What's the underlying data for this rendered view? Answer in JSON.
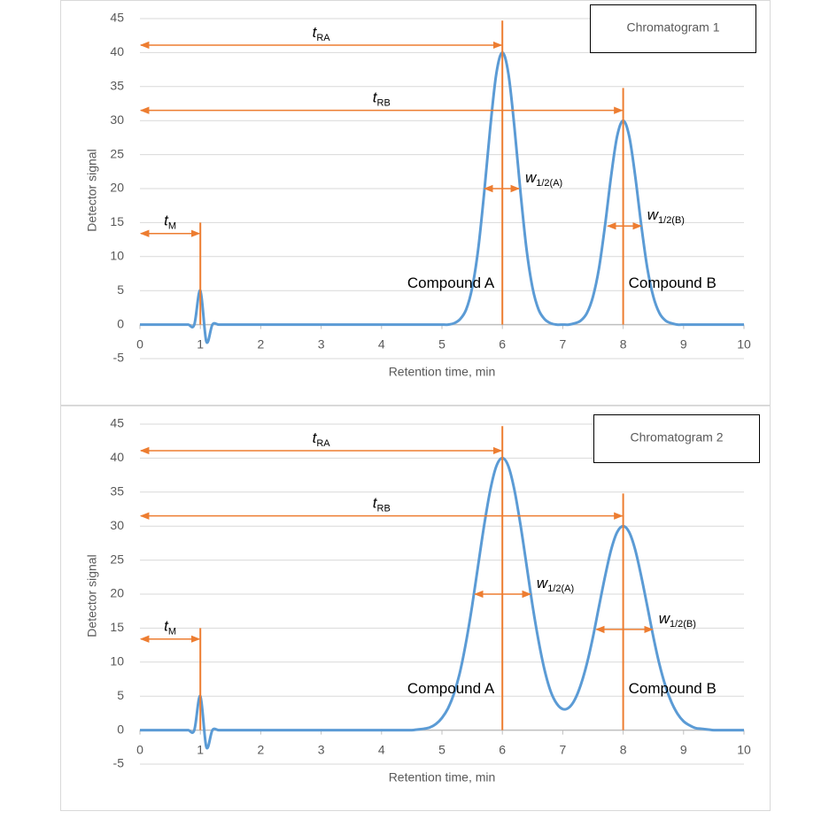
{
  "chart_data": [
    {
      "type": "line",
      "title": "Chromatogram 1",
      "xlabel": "Retention time, min",
      "ylabel": "Detector signal",
      "color": "#5b9bd5",
      "marker_color": "#ed7d31",
      "grid": true,
      "xlim": [
        0,
        10
      ],
      "ylim": [
        -5,
        45
      ],
      "xticks": [
        0,
        1,
        2,
        3,
        4,
        5,
        6,
        7,
        8,
        9,
        10
      ],
      "yticks": [
        -5,
        0,
        5,
        10,
        15,
        20,
        25,
        30,
        35,
        40,
        45
      ],
      "x": [
        0,
        0.1,
        0.2,
        0.3,
        0.4,
        0.5,
        0.6,
        0.7,
        0.8,
        0.9,
        1,
        1.1,
        1.2,
        1.3,
        1.4,
        1.5,
        1.6,
        1.7,
        1.8,
        1.9,
        2,
        2.1,
        2.2,
        2.3,
        2.4,
        2.5,
        2.6,
        2.7,
        2.8,
        2.9,
        3,
        3.1,
        3.2,
        3.3,
        3.4,
        3.5,
        3.6,
        3.7,
        3.8,
        3.9,
        4,
        4.1,
        4.2,
        4.3,
        4.4,
        4.5,
        4.6,
        4.7,
        4.8,
        4.9,
        5,
        5.1,
        5.2,
        5.3,
        5.4,
        5.5,
        5.6,
        5.7,
        5.8,
        5.9,
        6,
        6.1,
        6.2,
        6.3,
        6.4,
        6.5,
        6.6,
        6.7,
        6.8,
        6.9,
        7,
        7.1,
        7.2,
        7.3,
        7.4,
        7.5,
        7.6,
        7.7,
        7.8,
        7.9,
        8,
        8.1,
        8.2,
        8.3,
        8.4,
        8.5,
        8.6,
        8.7,
        8.8,
        8.9,
        9,
        9.1,
        9.2,
        9.3,
        9.4,
        9.5,
        9.6,
        9.7,
        9.8,
        9.9,
        10
      ],
      "values": [
        0,
        0,
        0,
        0,
        0,
        0,
        0,
        0,
        0,
        0,
        5,
        -2.5,
        0,
        0,
        0,
        0,
        0,
        0,
        0,
        0,
        0,
        0,
        0,
        0,
        0,
        0,
        0,
        0,
        0,
        0,
        0,
        0,
        0,
        0,
        0,
        0,
        0,
        0,
        0,
        0,
        0,
        0,
        0,
        0,
        0,
        0,
        0,
        0,
        0,
        0,
        0,
        0,
        0.2,
        0.8,
        2.2,
        5.4,
        11.1,
        19.5,
        29.0,
        36.9,
        40,
        36.9,
        29.0,
        19.5,
        11.1,
        5.4,
        2.2,
        0.8,
        0.2,
        0,
        0,
        0,
        0.2,
        0.6,
        1.7,
        4.1,
        8.3,
        14.6,
        21.8,
        27.7,
        30,
        27.7,
        21.8,
        14.6,
        8.3,
        4.1,
        1.7,
        0.6,
        0.2,
        0,
        0,
        0,
        0,
        0,
        0,
        0,
        0,
        0,
        0,
        0,
        0
      ],
      "peaks": [
        {
          "x": 1,
          "top": 15
        },
        {
          "x": 6,
          "top": 44.7,
          "label": "Compound A"
        },
        {
          "x": 8,
          "top": 34.8,
          "label": "Compound B"
        }
      ],
      "annotations": [
        {
          "symbol": "t",
          "sub": "RA",
          "x": [
            0,
            6
          ],
          "y": 41.1
        },
        {
          "symbol": "t",
          "sub": "RB",
          "x": [
            0,
            8
          ],
          "y": 31.5
        },
        {
          "symbol": "t",
          "sub": "M",
          "x": [
            0,
            1
          ],
          "y": 13.4
        },
        {
          "symbol": "w",
          "sub": "1/2(A)",
          "x": [
            5.69,
            6.29
          ],
          "y": 20
        },
        {
          "symbol": "w",
          "sub": "1/2(B)",
          "x": [
            7.73,
            8.31
          ],
          "y": 14.5
        }
      ]
    },
    {
      "type": "line",
      "title": "Chromatogram 2",
      "xlabel": "Retention time, min",
      "ylabel": "Detector signal",
      "color": "#5b9bd5",
      "marker_color": "#ed7d31",
      "grid": true,
      "xlim": [
        0,
        10
      ],
      "ylim": [
        -5,
        45
      ],
      "xticks": [
        0,
        1,
        2,
        3,
        4,
        5,
        6,
        7,
        8,
        9,
        10
      ],
      "yticks": [
        -5,
        0,
        5,
        10,
        15,
        20,
        25,
        30,
        35,
        40,
        45
      ],
      "x": [
        0,
        0.1,
        0.2,
        0.3,
        0.4,
        0.5,
        0.6,
        0.7,
        0.8,
        0.9,
        1,
        1.1,
        1.2,
        1.3,
        1.4,
        1.5,
        1.6,
        1.7,
        1.8,
        1.9,
        2,
        2.1,
        2.2,
        2.3,
        2.4,
        2.5,
        2.6,
        2.7,
        2.8,
        2.9,
        3,
        3.1,
        3.2,
        3.3,
        3.4,
        3.5,
        3.6,
        3.7,
        3.8,
        3.9,
        4,
        4.1,
        4.2,
        4.3,
        4.4,
        4.5,
        4.6,
        4.7,
        4.8,
        4.9,
        5,
        5.1,
        5.2,
        5.3,
        5.4,
        5.5,
        5.6,
        5.7,
        5.8,
        5.9,
        6,
        6.1,
        6.2,
        6.3,
        6.4,
        6.5,
        6.6,
        6.7,
        6.8,
        6.9,
        7,
        7.1,
        7.2,
        7.3,
        7.4,
        7.5,
        7.6,
        7.7,
        7.8,
        7.9,
        8,
        8.1,
        8.2,
        8.3,
        8.4,
        8.5,
        8.6,
        8.7,
        8.8,
        8.9,
        9,
        9.1,
        9.2,
        9.3,
        9.4,
        9.5,
        9.6,
        9.7,
        9.8,
        9.9,
        10
      ],
      "values": [
        0,
        0,
        0,
        0,
        0,
        0,
        0,
        0,
        0,
        0,
        5,
        -2.5,
        0,
        0,
        0,
        0,
        0,
        0,
        0,
        0,
        0,
        0,
        0,
        0,
        0,
        0,
        0,
        0,
        0,
        0,
        0,
        0,
        0,
        0,
        0,
        0,
        0,
        0,
        0,
        0,
        0,
        0,
        0,
        0,
        0,
        0,
        0.1,
        0.2,
        0.4,
        0.9,
        1.8,
        3.2,
        5.4,
        8.6,
        13.0,
        18.3,
        24.3,
        30.2,
        35.3,
        38.8,
        40,
        38.8,
        35.3,
        30.2,
        24.3,
        18.3,
        13.1,
        8.8,
        5.7,
        3.9,
        3.1,
        3.3,
        4.5,
        6.7,
        9.8,
        13.7,
        18.2,
        22.6,
        26.5,
        29.1,
        30,
        29.1,
        26.5,
        22.6,
        18.2,
        13.7,
        9.7,
        6.5,
        4.1,
        2.4,
        1.3,
        0.7,
        0.3,
        0.2,
        0.1,
        0,
        0,
        0,
        0,
        0,
        0
      ],
      "peaks": [
        {
          "x": 1,
          "top": 15
        },
        {
          "x": 6,
          "top": 44.7,
          "label": "Compound A"
        },
        {
          "x": 8,
          "top": 34.8,
          "label": "Compound B"
        }
      ],
      "annotations": [
        {
          "symbol": "t",
          "sub": "RA",
          "x": [
            0,
            6
          ],
          "y": 41.1
        },
        {
          "symbol": "t",
          "sub": "RB",
          "x": [
            0,
            8
          ],
          "y": 31.5
        },
        {
          "symbol": "t",
          "sub": "M",
          "x": [
            0,
            1
          ],
          "y": 13.4
        },
        {
          "symbol": "w",
          "sub": "1/2(A)",
          "x": [
            5.53,
            6.48
          ],
          "y": 20
        },
        {
          "symbol": "w",
          "sub": "1/2(B)",
          "x": [
            7.54,
            8.5
          ],
          "y": 14.8
        }
      ]
    }
  ]
}
